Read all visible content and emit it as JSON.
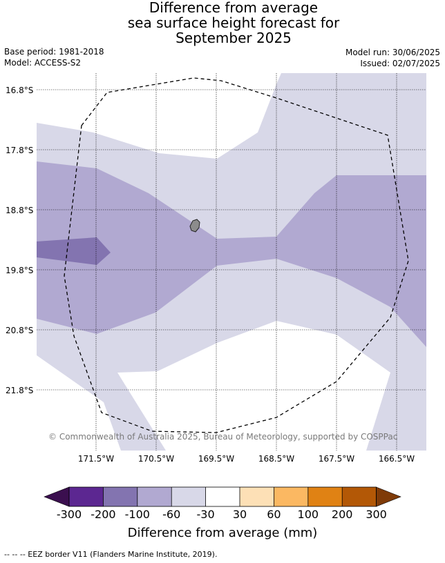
{
  "title": {
    "line1": "Difference from average",
    "line2": "sea surface height forecast for",
    "line3": "September 2025"
  },
  "meta": {
    "base_period": "Base period: 1981-2018",
    "model": "Model: ACCESS-S2",
    "model_run": "Model run: 30/06/2025",
    "issued": "Issued: 02/07/2025"
  },
  "map": {
    "latitude_labels": [
      "16.8°S",
      "17.8°S",
      "18.8°S",
      "19.8°S",
      "20.8°S",
      "21.8°S"
    ],
    "longitude_labels": [
      "171.5°W",
      "170.5°W",
      "169.5°W",
      "168.5°W",
      "167.5°W",
      "166.5°W"
    ],
    "copyright": "© Commonwealth of Australia 2025, Bureau of Meteorology, supported by COSPPac",
    "colors": {
      "minus30_30": "#ffffff",
      "minus60_minus30": "#d8d8e8",
      "minus100_minus60": "#b1a9d1",
      "minus200_minus100": "#8374b0",
      "land": "#8c8c8c",
      "eez_border": "#000000"
    }
  },
  "colorbar": {
    "title": "Difference from average (mm)",
    "tick_labels": [
      "-300",
      "-200",
      "-100",
      "-60",
      "-30",
      "30",
      "60",
      "100",
      "200",
      "300"
    ],
    "colors": {
      "below_minus300": "#3b0f4f",
      "minus300_minus200": "#5c2791",
      "minus200_minus100": "#8374b0",
      "minus100_minus60": "#b1a9d1",
      "minus60_minus30": "#d8d8e8",
      "minus30_30": "#ffffff",
      "30_60": "#fde0b6",
      "60_100": "#fbb862",
      "100_200": "#e08214",
      "200_300": "#b35806",
      "above_300": "#7f3b08"
    }
  },
  "footnote": "--  --  -- EEZ border V11 (Flanders Marine Institute, 2019)."
}
